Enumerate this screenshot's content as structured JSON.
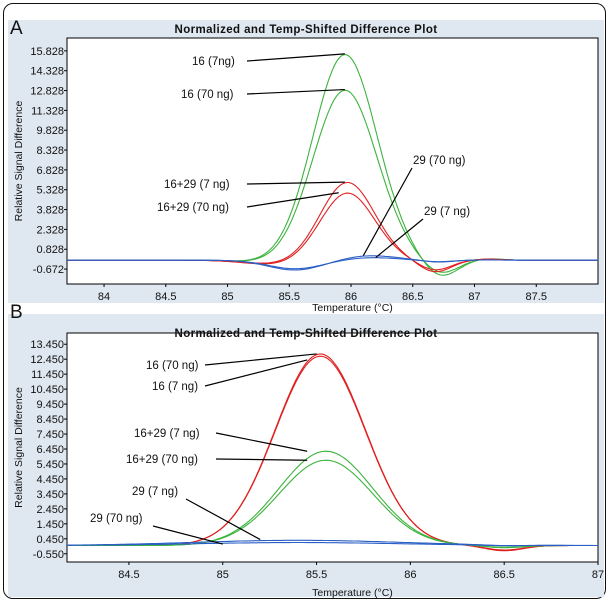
{
  "chart_data": [
    {
      "panel": "A",
      "type": "line",
      "title": "Normalized and Temp-Shifted Difference Plot",
      "xlabel": "Temperature (°C)",
      "ylabel": "Relative Signal Difference",
      "xlim": [
        83.7,
        88.0
      ],
      "ylim": [
        -1.8,
        16.8
      ],
      "xticks": [
        "84",
        "84.5",
        "85",
        "85.5",
        "86",
        "86.5",
        "87",
        "87.5"
      ],
      "xtick_values": [
        84,
        84.5,
        85,
        85.5,
        86,
        86.5,
        87,
        87.5
      ],
      "yticks": [
        "15.828",
        "14.328",
        "12.828",
        "11.328",
        "9.828",
        "8.328",
        "6.828",
        "5.328",
        "3.828",
        "2.328",
        "0.828",
        "-0.672"
      ],
      "ytick_values": [
        15.828,
        14.328,
        12.828,
        11.328,
        9.828,
        8.328,
        6.828,
        5.328,
        3.828,
        2.328,
        0.828,
        -0.672
      ],
      "grid": false,
      "series": [
        {
          "name": "16 (7ng)",
          "color": "#3cb33c",
          "peak_x": 85.95,
          "peak_y": 15.6
        },
        {
          "name": "16 (70 ng)",
          "color": "#3cb33c",
          "peak_x": 85.95,
          "peak_y": 12.9
        },
        {
          "name": "16+29 (7 ng)",
          "color": "#e02020",
          "peak_x": 85.97,
          "peak_y": 5.9
        },
        {
          "name": "16+29 (70 ng)",
          "color": "#e02020",
          "peak_x": 85.97,
          "peak_y": 5.1
        },
        {
          "name": "29 (70 ng)",
          "color": "#2a5fc6",
          "peak_x": 86.15,
          "peak_y": 0.35
        },
        {
          "name": "29 (7 ng)",
          "color": "#2a5fc6",
          "peak_x": 86.15,
          "peak_y": 0.2
        }
      ],
      "annotations": [
        {
          "text": "16 (7ng)",
          "x": 85.95,
          "y": 15.6
        },
        {
          "text": "16 (70 ng)",
          "x": 85.95,
          "y": 12.9
        },
        {
          "text": "16+29 (7 ng)",
          "x": 85.95,
          "y": 5.9
        },
        {
          "text": "16+29 (70 ng)",
          "x": 85.9,
          "y": 5.1
        },
        {
          "text": "29 (70 ng)",
          "x": 86.1,
          "y": 0.35
        },
        {
          "text": "29 (7 ng)",
          "x": 86.2,
          "y": 0.2
        }
      ]
    },
    {
      "panel": "B",
      "type": "line",
      "title": "Normalized and Temp-Shifted Difference Plot",
      "xlabel": "Temperature (°C)",
      "ylabel": "Relative Signal Difference",
      "xlim": [
        84.17,
        87.0
      ],
      "ylim": [
        -1.1,
        14.2
      ],
      "xticks": [
        "84.5",
        "85",
        "85.5",
        "86",
        "86.5",
        "87"
      ],
      "xtick_values": [
        84.5,
        85,
        85.5,
        86,
        86.5,
        87
      ],
      "yticks": [
        "13.450",
        "12.450",
        "11.450",
        "10.450",
        "9.450",
        "8.450",
        "7.450",
        "6.450",
        "5.450",
        "4.450",
        "3.450",
        "2.450",
        "1.450",
        "0.450",
        "-0.550"
      ],
      "ytick_values": [
        13.45,
        12.45,
        11.45,
        10.45,
        9.45,
        8.45,
        7.45,
        6.45,
        5.45,
        4.45,
        3.45,
        2.45,
        1.45,
        0.45,
        -0.55
      ],
      "grid": false,
      "series": [
        {
          "name": "16 (70 ng)",
          "color": "#e02020",
          "peak_x": 85.52,
          "peak_y": 12.8
        },
        {
          "name": "16 (7 ng)",
          "color": "#e02020",
          "peak_x": 85.52,
          "peak_y": 12.65
        },
        {
          "name": "16+29 (7 ng)",
          "color": "#3cb33c",
          "peak_x": 85.55,
          "peak_y": 6.3
        },
        {
          "name": "16+29 (70 ng)",
          "color": "#3cb33c",
          "peak_x": 85.55,
          "peak_y": 5.7
        },
        {
          "name": "29 (7 ng)",
          "color": "#2a5fc6",
          "peak_x": 85.4,
          "peak_y": 0.35
        },
        {
          "name": "29 (70 ng)",
          "color": "#2a5fc6",
          "peak_x": 85.4,
          "peak_y": 0.2
        }
      ],
      "annotations": [
        {
          "text": "16 (70 ng)",
          "x": 85.5,
          "y": 12.8
        },
        {
          "text": "16 (7 ng)",
          "x": 85.45,
          "y": 12.4
        },
        {
          "text": "16+29 (7 ng)",
          "x": 85.45,
          "y": 6.3
        },
        {
          "text": "16+29 (70 ng)",
          "x": 85.45,
          "y": 5.7
        },
        {
          "text": "29 (7 ng)",
          "x": 85.2,
          "y": 0.4
        },
        {
          "text": "29 (70 ng)",
          "x": 85.0,
          "y": 0.1
        }
      ]
    }
  ]
}
